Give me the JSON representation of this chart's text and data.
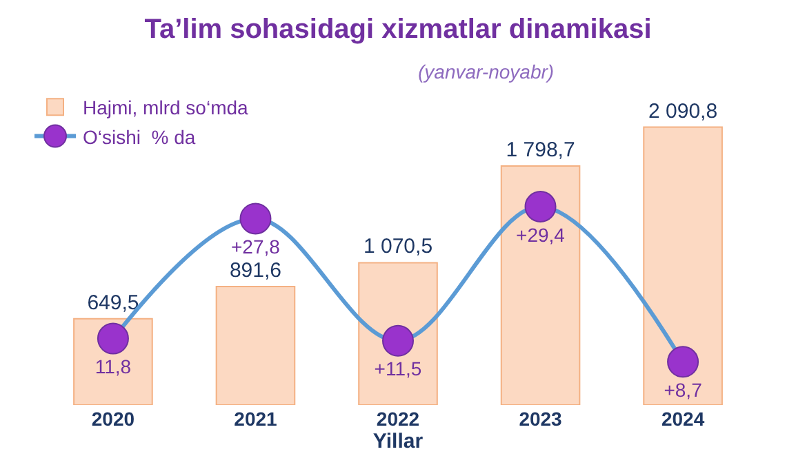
{
  "chart_data": {
    "type": "bar",
    "title": "Ta’lim sohasidagi xizmatlar dinamikasi",
    "subtitle": "(yanvar-noyabr)",
    "xlabel": "Yillar",
    "categories": [
      "2020",
      "2021",
      "2022",
      "2023",
      "2024"
    ],
    "series": [
      {
        "name": "Hajmi, mlrd so‘mda",
        "color": "#fcd9c2",
        "values": [
          649.5,
          891.6,
          1070.5,
          1798.7,
          2090.8
        ],
        "value_labels": [
          "649,5",
          "891,6",
          "1 070,5",
          "1 798,7",
          "2 090,8"
        ]
      },
      {
        "name": "O‘sishi  % da",
        "type": "line",
        "axis": "y2",
        "color": "#5b9bd5",
        "values": [
          11.8,
          27.8,
          11.5,
          29.4,
          8.7
        ],
        "value_labels": [
          "11,8",
          "+27,8",
          "+11,5",
          "+29,4",
          "+8,7"
        ]
      }
    ],
    "marker": "circle",
    "legend": "top left"
  }
}
